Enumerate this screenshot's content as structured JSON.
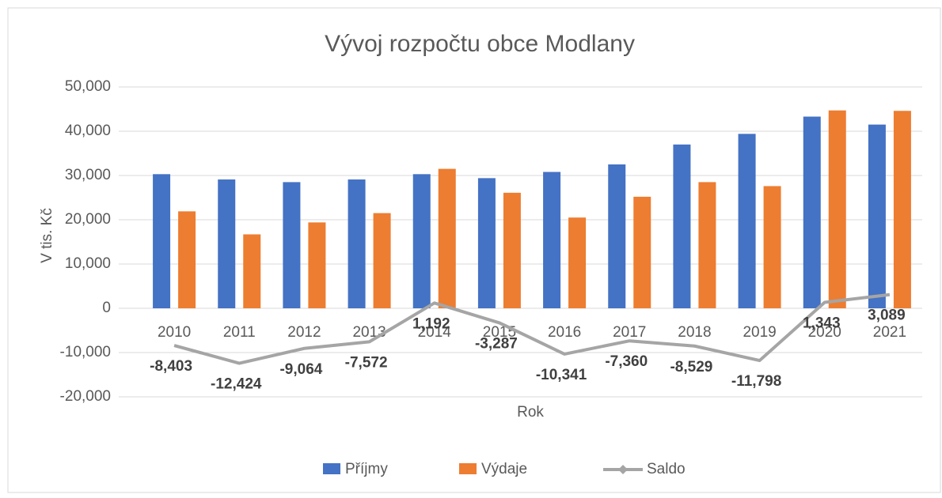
{
  "chart_data": {
    "type": "bar-line",
    "title": "Vývoj rozpočtu obce Modlany",
    "y_label": "V tis. Kč",
    "x_label": "Rok",
    "categories": [
      "2010",
      "2011",
      "2012",
      "2013",
      "2014",
      "2015",
      "2016",
      "2017",
      "2018",
      "2019",
      "2020",
      "2021"
    ],
    "series": [
      {
        "name": "Příjmy",
        "type": "bar",
        "color": "#4472c4",
        "values": [
          30300,
          29100,
          28500,
          29100,
          30300,
          29400,
          30800,
          32500,
          37000,
          39400,
          43300,
          41500
        ]
      },
      {
        "name": "Výdaje",
        "type": "bar",
        "color": "#ed7d31",
        "values": [
          21900,
          16700,
          19400,
          21500,
          31500,
          26100,
          20500,
          25200,
          28500,
          27600,
          44700,
          44600
        ]
      },
      {
        "name": "Saldo",
        "type": "line",
        "color": "#a5a5a5",
        "values": [
          -8403,
          -12424,
          -9064,
          -7572,
          1192,
          -3287,
          -10341,
          -7360,
          -8529,
          -11798,
          1343,
          3089
        ],
        "value_labels": [
          "-8,403",
          "-12,424",
          "-9,064",
          "-7,572",
          "1,192",
          "-3,287",
          "-10,341",
          "-7,360",
          "-8,529",
          "-11,798",
          "1,343",
          "3,089"
        ]
      }
    ],
    "ylim": [
      -20000,
      50000
    ],
    "yticks": [
      {
        "value": -20000,
        "label": "-20,000"
      },
      {
        "value": -10000,
        "label": "-10,000"
      },
      0,
      {
        "value": 10000,
        "label": "10,000"
      },
      {
        "value": 20000,
        "label": "20,000"
      },
      {
        "value": 30000,
        "label": "30,000"
      },
      {
        "value": 40000,
        "label": "40,000"
      },
      {
        "value": 50000,
        "label": "50,000"
      }
    ],
    "grid": true,
    "legend": "bottom"
  }
}
